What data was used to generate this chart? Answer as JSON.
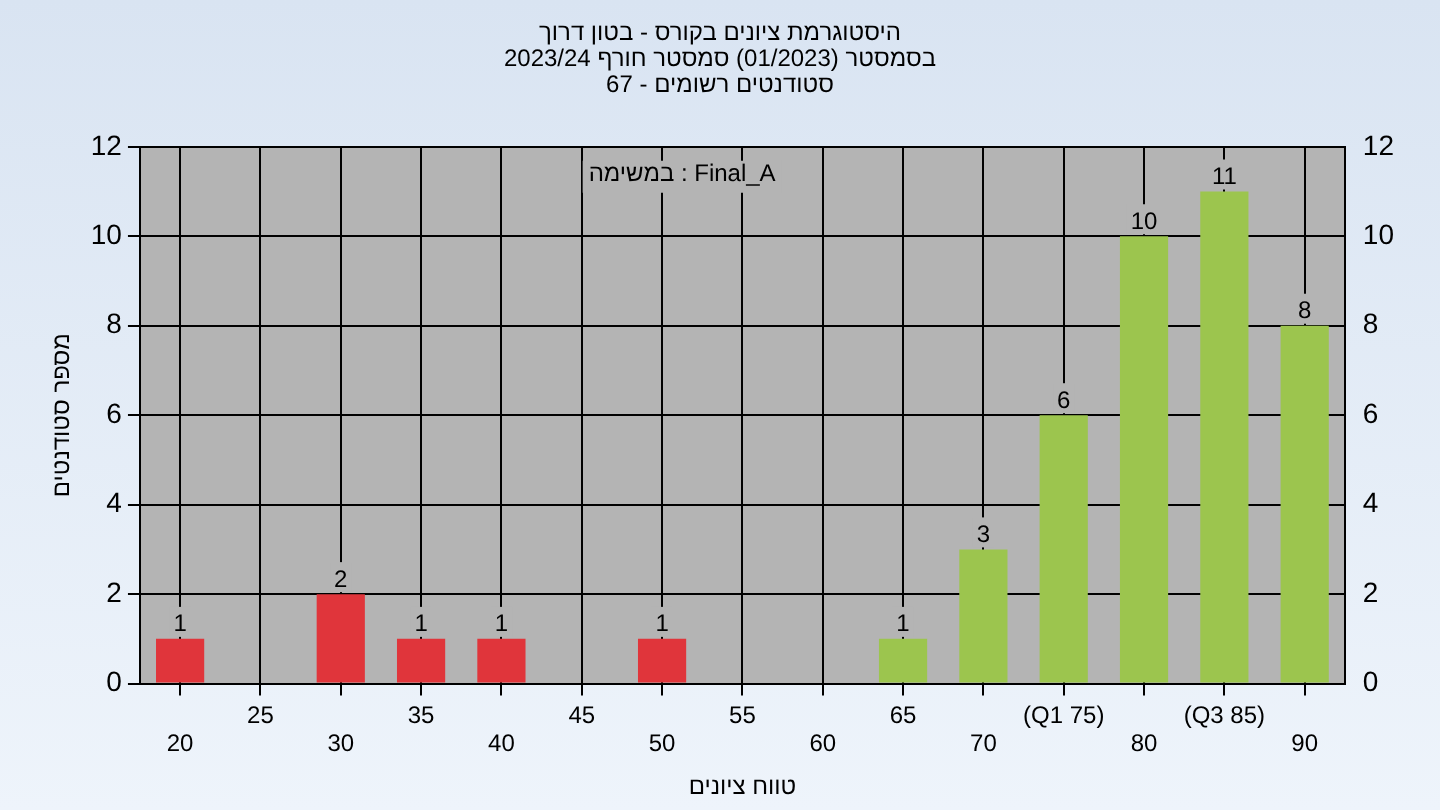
{
  "chart_data": {
    "type": "bar",
    "title": "היסטוגרמת ציונים בקורס - בטון דרוך",
    "subtitle": "בסמסטר  (01/2023)  סמסטר חורף 2023/24\nסטודנטים רשומים - 67",
    "xlabel": "טווח ציונים",
    "ylabel": "מספר סטודנטים",
    "annotations": [
      "במשימה : Final_A"
    ],
    "categories": [
      "20",
      "25",
      "30",
      "35",
      "40",
      "45",
      "50",
      "55",
      "60",
      "65",
      "70",
      "(Q1 75)",
      "80",
      "(Q3 85)",
      "90"
    ],
    "values": [
      1,
      null,
      2,
      1,
      1,
      null,
      1,
      null,
      null,
      1,
      3,
      6,
      10,
      11,
      8
    ],
    "colors": [
      "#e0353b",
      "#e0353b",
      "#e0353b",
      "#e0353b",
      "#e0353b",
      "#e0353b",
      "#e0353b",
      "#e0353b",
      "#e0353b",
      "#9cc54e",
      "#9cc54e",
      "#9cc54e",
      "#9cc54e",
      "#9cc54e",
      "#9cc54e"
    ],
    "ylim": [
      0,
      12
    ],
    "yticks": [
      0,
      2,
      4,
      6,
      8,
      10,
      12
    ],
    "y2lim": [
      0,
      12
    ],
    "y2ticks": [
      0,
      2,
      4,
      6,
      8,
      10,
      12
    ],
    "data_labels": true,
    "grid": true
  }
}
